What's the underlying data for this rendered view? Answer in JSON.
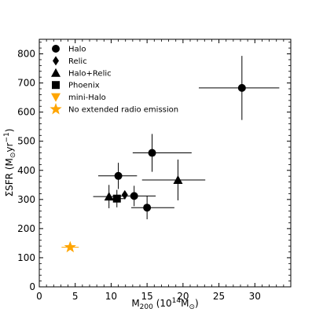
{
  "chart_data": {
    "type": "scatter",
    "title": "",
    "xlabel": "M",
    "xlabel_sub": "200",
    "xlabel_units": "(10",
    "xlabel_sup": "14",
    "xlabel_tail": "M",
    "xlabel_sun_sub": "⊙",
    "xlabel_close": ")",
    "ylabel": "ΣSFR (M",
    "ylabel_sun_sub": "⊙",
    "ylabel_units": "yr",
    "ylabel_sup": "−1",
    "ylabel_close": ")",
    "xlim": [
      0,
      35
    ],
    "ylim": [
      0,
      850
    ],
    "xticks": [
      0,
      5,
      10,
      15,
      20,
      25,
      30
    ],
    "yticks": [
      0,
      100,
      200,
      300,
      400,
      500,
      600,
      700,
      800
    ],
    "grid": false,
    "legend_position": "top-left",
    "series": [
      {
        "name": "Halo",
        "marker": "circle",
        "color": "#000000",
        "points": [
          {
            "x": 28.2,
            "y": 683,
            "xerr": [
              6.0,
              5.2
            ],
            "yerr": [
              110,
              110
            ]
          },
          {
            "x": 15.7,
            "y": 460,
            "xerr": [
              2.7,
              5.5
            ],
            "yerr": [
              65,
              65
            ]
          },
          {
            "x": 11.0,
            "y": 381,
            "xerr": [
              2.8,
              2.6
            ],
            "yerr": [
              45,
              45
            ]
          },
          {
            "x": 13.2,
            "y": 312,
            "xerr": [
              2.5,
              3.0
            ],
            "yerr": [
              35,
              35
            ]
          },
          {
            "x": 15.0,
            "y": 272,
            "xerr": [
              2.2,
              3.8
            ],
            "yerr": [
              40,
              40
            ]
          }
        ]
      },
      {
        "name": "Relic",
        "marker": "diamond",
        "color": "#000000",
        "points": [
          {
            "x": 11.9,
            "y": 316,
            "xerr": [
              0,
              0
            ],
            "yerr": [
              0,
              0
            ]
          }
        ]
      },
      {
        "name": "Halo+Relic",
        "marker": "triangle",
        "color": "#000000",
        "points": [
          {
            "x": 19.3,
            "y": 367,
            "xerr": [
              5.0,
              3.8
            ],
            "yerr": [
              70,
              70
            ]
          },
          {
            "x": 9.7,
            "y": 310,
            "xerr": [
              2.2,
              1.6
            ],
            "yerr": [
              40,
              40
            ]
          }
        ]
      },
      {
        "name": "Phoenix",
        "marker": "square",
        "color": "#000000",
        "points": [
          {
            "x": 10.8,
            "y": 303,
            "xerr": [
              1.5,
              1.2
            ],
            "yerr": [
              30,
              30
            ]
          }
        ]
      },
      {
        "name": "mini-Halo",
        "marker": "triangle-down",
        "color": "#ffa500",
        "points": []
      },
      {
        "name": "No extended radio emission",
        "marker": "star",
        "color": "#ffa500",
        "points": [
          {
            "x": 4.3,
            "y": 136,
            "xerr": [
              1.2,
              1.2
            ],
            "yerr": [
              0,
              0
            ]
          }
        ]
      }
    ]
  }
}
